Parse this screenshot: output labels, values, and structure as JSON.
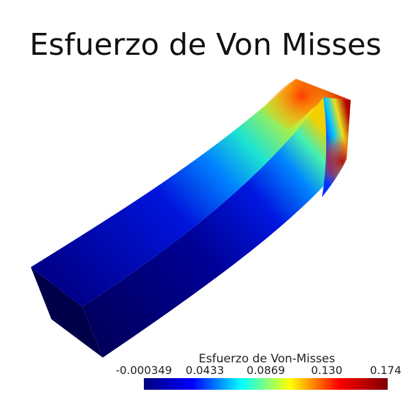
{
  "title": "Esfuerzo de Von Misses",
  "legend": {
    "title": "Esfuerzo de Von-Misses",
    "ticks": [
      "-0.000349",
      "0.0433",
      "0.0869",
      "0.130",
      "0.174"
    ],
    "min": -0.000349,
    "max": 0.174
  },
  "colormap": {
    "name": "jet",
    "stops": [
      "#00007f",
      "#0000ff",
      "#00ffff",
      "#ffff00",
      "#ff0000",
      "#7f0000"
    ]
  }
}
